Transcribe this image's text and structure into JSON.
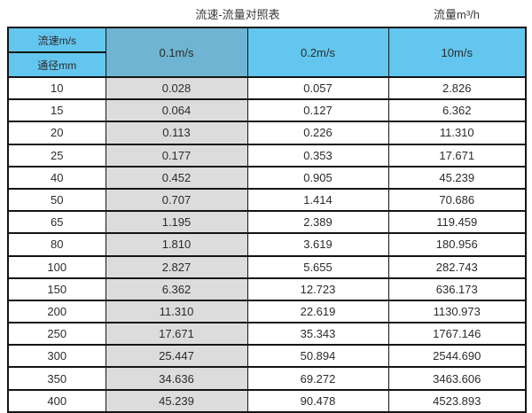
{
  "chart_data": {
    "type": "table",
    "title": "流速-流量对照表",
    "flow_unit_label": "流量m³/h",
    "corner": {
      "top": "流速m/s",
      "bottom": "通径mm"
    },
    "velocity_columns": [
      "0.1m/s",
      "0.2m/s",
      "10m/s"
    ],
    "rows": [
      {
        "diameter": "10",
        "values": [
          "0.028",
          "0.057",
          "2.826"
        ]
      },
      {
        "diameter": "15",
        "values": [
          "0.064",
          "0.127",
          "6.362"
        ]
      },
      {
        "diameter": "20",
        "values": [
          "0.113",
          "0.226",
          "11.310"
        ]
      },
      {
        "diameter": "25",
        "values": [
          "0.177",
          "0.353",
          "17.671"
        ]
      },
      {
        "diameter": "40",
        "values": [
          "0.452",
          "0.905",
          "45.239"
        ]
      },
      {
        "diameter": "50",
        "values": [
          "0.707",
          "1.414",
          "70.686"
        ]
      },
      {
        "diameter": "65",
        "values": [
          "1.195",
          "2.389",
          "119.459"
        ]
      },
      {
        "diameter": "80",
        "values": [
          "1.810",
          "3.619",
          "180.956"
        ]
      },
      {
        "diameter": "100",
        "values": [
          "2.827",
          "5.655",
          "282.743"
        ]
      },
      {
        "diameter": "150",
        "values": [
          "6.362",
          "12.723",
          "636.173"
        ]
      },
      {
        "diameter": "200",
        "values": [
          "11.310",
          "22.619",
          "1130.973"
        ]
      },
      {
        "diameter": "250",
        "values": [
          "17.671",
          "35.343",
          "1767.146"
        ]
      },
      {
        "diameter": "300",
        "values": [
          "25.447",
          "50.894",
          "2544.690"
        ]
      },
      {
        "diameter": "350",
        "values": [
          "34.636",
          "69.272",
          "3463.606"
        ]
      },
      {
        "diameter": "400",
        "values": [
          "45.239",
          "90.478",
          "4523.893"
        ]
      }
    ]
  },
  "colors": {
    "header_blue": "#63c6ef",
    "header_blue_muted": "#6fb4d2",
    "first_value_column_gray": "#dcdcdc",
    "border_black": "#141414",
    "title_text": "#3a3a3a",
    "cell_text": "#2b2b2b"
  }
}
